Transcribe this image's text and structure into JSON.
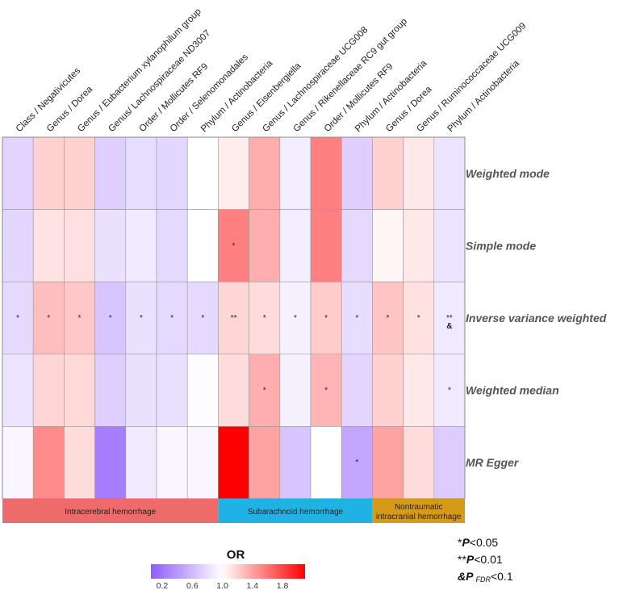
{
  "chart_data": {
    "type": "heatmap",
    "title": "",
    "columns": [
      "Class / Negativicutes",
      "Genus / Dorea",
      "Genus / Eubacterium xylanophilum group",
      "Genus/ Lachnospiraceae ND3007",
      "Order / Mollicutes RF9",
      "Order / Selenomonadales",
      "Phylum / Actinobacteria",
      "Genus / Eisenbergiella",
      "Genus / Lachnospiraceae UCG008",
      "Genus / Rikenellaceae RC9 gut group",
      "Order / Mollicutes RF9",
      "Phylum / Actinobacteria",
      "Genus / Dorea",
      "Genus / Ruminococcaceae UCG009",
      "Phylum / Actinobacteria"
    ],
    "rows": [
      "Weighted mode",
      "Simple mode",
      "Inverse variance weighted",
      "Weighted median",
      "MR Egger"
    ],
    "values": [
      [
        0.75,
        1.2,
        1.2,
        0.72,
        0.8,
        0.76,
        1.0,
        1.08,
        1.35,
        0.9,
        1.55,
        0.72,
        1.2,
        1.1,
        0.85
      ],
      [
        0.76,
        1.12,
        1.14,
        0.82,
        0.88,
        0.78,
        1.0,
        1.55,
        1.35,
        0.9,
        1.55,
        0.78,
        1.04,
        1.1,
        0.85
      ],
      [
        0.78,
        1.28,
        1.24,
        0.66,
        0.82,
        0.78,
        0.78,
        1.18,
        1.15,
        0.92,
        1.22,
        0.8,
        1.25,
        1.13,
        0.88
      ],
      [
        0.84,
        1.18,
        1.17,
        0.72,
        0.82,
        0.82,
        0.98,
        1.15,
        1.35,
        0.92,
        1.32,
        0.76,
        1.2,
        1.1,
        0.88
      ],
      [
        0.95,
        1.5,
        1.15,
        0.25,
        0.88,
        0.95,
        0.95,
        2.1,
        1.4,
        0.66,
        1.0,
        0.48,
        1.4,
        1.15,
        0.7
      ]
    ],
    "significance": [
      [
        "",
        "",
        "",
        "",
        "",
        "",
        "",
        "",
        "",
        "",
        "",
        "",
        "",
        "",
        ""
      ],
      [
        "",
        "",
        "",
        "",
        "",
        "",
        "",
        "*",
        "",
        "",
        "",
        "",
        "",
        "",
        ""
      ],
      [
        "*",
        "*",
        "*",
        "*",
        "*",
        "*",
        "*",
        "**",
        "*",
        "*",
        "*",
        "*",
        "*",
        "*",
        "**"
      ],
      [
        "",
        "",
        "",
        "",
        "",
        "",
        "",
        "",
        "*",
        "",
        "*",
        "",
        "",
        "",
        "*"
      ],
      [
        "",
        "",
        "",
        "",
        "",
        "",
        "",
        "",
        "",
        "",
        "",
        "*",
        "",
        "",
        ""
      ]
    ],
    "fdr_marks": [
      [
        2,
        14,
        "&"
      ]
    ],
    "groups": [
      {
        "name": "Intracerebral hemorrhage",
        "start": 0,
        "end": 6,
        "color": "#ee6b6b"
      },
      {
        "name": "Subarachnoid hemorrhage",
        "start": 7,
        "end": 11,
        "color": "#1eb3e2"
      },
      {
        "name": "Nontraumatic intracranial hemorrhage",
        "start": 12,
        "end": 14,
        "color": "#d69a18"
      }
    ],
    "colorbar": {
      "title": "OR",
      "range": [
        0.05,
        2.1
      ],
      "center": 1.0,
      "ticks": [
        "0.2",
        "0.6",
        "1.0",
        "1.4",
        "1.8"
      ],
      "tick_values": [
        0.2,
        0.6,
        1.0,
        1.4,
        1.8
      ],
      "low_color": "#8f5cff",
      "mid_color": "#ffffff",
      "high_color": "#ff0000"
    }
  },
  "legend_notes": {
    "p05": {
      "star": "*",
      "p": "P",
      "text": "<0.05"
    },
    "p01": {
      "star": "**",
      "p": "P",
      "text": "<0.01"
    },
    "fdr": {
      "amp": "&",
      "p": "P",
      "sub": "FDR",
      "text": "<0.1"
    }
  }
}
